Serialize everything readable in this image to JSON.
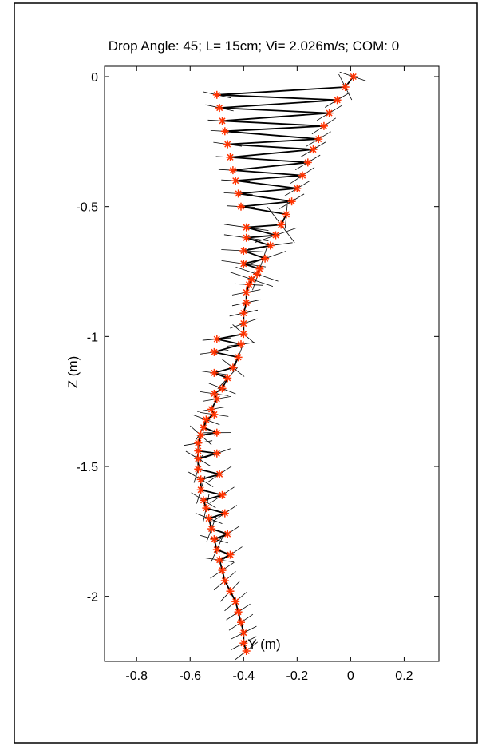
{
  "chart_data": {
    "type": "scatter",
    "title": "Drop Angle: 45; L= 15cm; Vi= 2.026m/s; COM: 0",
    "xlabel": "Y (m)",
    "ylabel": "Z (m)",
    "xlim": [
      -0.92,
      0.33
    ],
    "ylim": [
      -2.25,
      0.04
    ],
    "xticks": [
      -0.8,
      -0.6,
      -0.4,
      -0.2,
      0,
      0.2
    ],
    "xtick_labels": [
      "-0.8",
      "-0.6",
      "-0.4",
      "-0.2",
      "0",
      "0.2"
    ],
    "yticks": [
      0,
      -0.5,
      -1,
      -1.5,
      -2
    ],
    "ytick_labels": [
      "0",
      "-0.5",
      "-1",
      "-1.5",
      "-2"
    ],
    "grid": false,
    "legend": "none",
    "marker": "asterisk",
    "marker_color": "#ff3300",
    "line_color": "#000000",
    "series": [
      {
        "y": [
          0.01,
          -0.02,
          -0.05,
          -0.08,
          -0.1,
          -0.12,
          -0.14,
          -0.16,
          -0.18,
          -0.2,
          -0.22,
          -0.24,
          -0.26,
          -0.28,
          -0.3,
          -0.32,
          -0.34,
          -0.35,
          -0.37,
          -0.38,
          -0.39,
          -0.39,
          -0.4,
          -0.4,
          -0.4,
          -0.41,
          -0.42,
          -0.44,
          -0.46,
          -0.48,
          -0.5,
          -0.52,
          -0.54,
          -0.55,
          -0.56,
          -0.57,
          -0.57,
          -0.57,
          -0.57,
          -0.56,
          -0.56,
          -0.55,
          -0.54,
          -0.53,
          -0.52,
          -0.51,
          -0.5,
          -0.49,
          -0.48,
          -0.47,
          -0.45,
          -0.43,
          -0.42,
          -0.41,
          -0.4,
          -0.4,
          -0.39,
          -0.39,
          -0.39,
          -0.4,
          -0.4,
          -0.41,
          -0.42,
          -0.43,
          -0.44,
          -0.45,
          -0.46,
          -0.47,
          -0.48,
          -0.49,
          -0.5,
          -0.5,
          -0.51,
          -0.51,
          -0.51,
          -0.51,
          -0.5,
          -0.5,
          -0.49,
          -0.48,
          -0.47,
          -0.46,
          -0.45
        ],
        "z": [
          0.0,
          -0.04,
          -0.09,
          -0.14,
          -0.19,
          -0.24,
          -0.28,
          -0.33,
          -0.38,
          -0.43,
          -0.48,
          -0.53,
          -0.57,
          -0.61,
          -0.65,
          -0.7,
          -0.74,
          -0.76,
          -0.78,
          -0.8,
          -0.83,
          -0.87,
          -0.91,
          -0.95,
          -0.99,
          -1.03,
          -1.08,
          -1.12,
          -1.16,
          -1.2,
          -1.24,
          -1.28,
          -1.32,
          -1.35,
          -1.38,
          -1.41,
          -1.44,
          -1.47,
          -1.51,
          -1.55,
          -1.59,
          -1.63,
          -1.66,
          -1.7,
          -1.74,
          -1.78,
          -1.82,
          -1.86,
          -1.9,
          -1.94,
          -1.98,
          -2.02,
          -2.06,
          -2.1,
          -2.14,
          -2.18,
          -2.21,
          -0.62,
          -0.58,
          -0.67,
          -0.72,
          -0.5,
          -0.45,
          -0.4,
          -0.36,
          -0.31,
          -0.26,
          -0.21,
          -0.17,
          -0.12,
          -0.07,
          -1.01,
          -1.06,
          -1.14,
          -1.22,
          -1.3,
          -1.37,
          -1.45,
          -1.53,
          -1.61,
          -1.68,
          -1.76,
          -1.84
        ]
      }
    ]
  }
}
